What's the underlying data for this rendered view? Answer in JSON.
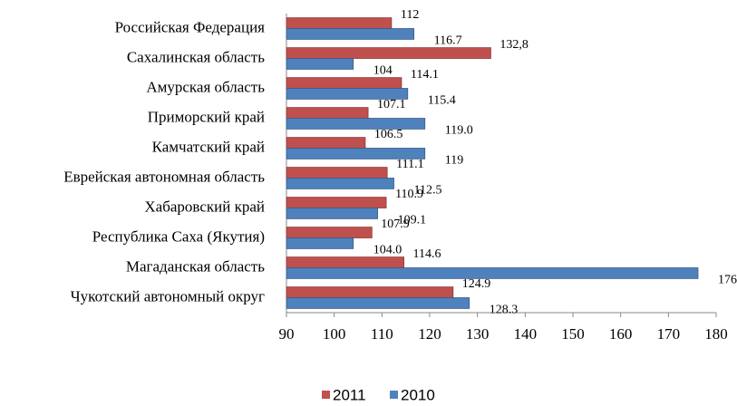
{
  "chart_data": {
    "type": "barh",
    "categories": [
      "Российская Федерация",
      "Сахалинская область",
      "Амурская область",
      "Приморский край",
      "Камчатский край",
      "Еврейская автономная область",
      "Хабаровский край",
      "Республика Саха (Якутия)",
      "Магаданская область",
      "Чукотский автономный округ"
    ],
    "series": [
      {
        "name": "2011",
        "color": "#c0504d",
        "values": [
          112,
          132.8,
          114.1,
          107.1,
          106.5,
          111.1,
          110.9,
          107.9,
          114.6,
          124.9
        ],
        "value_labels": [
          "112",
          "132,8",
          "114.1",
          "107.1",
          "106.5",
          "111.1",
          "110.9",
          "107.9",
          "114.6",
          "124.9"
        ]
      },
      {
        "name": "2010",
        "color": "#4f81bd",
        "values": [
          116.7,
          104,
          115.4,
          119.0,
          119,
          112.5,
          109.1,
          104.0,
          176.2,
          128.3
        ],
        "value_labels": [
          "116.7",
          "104",
          "115.4",
          "119.0",
          "119",
          "112.5",
          "109.1",
          "104.0",
          "176.2",
          "128.3"
        ]
      }
    ],
    "xlim": [
      90,
      180
    ],
    "xticks": [
      90,
      100,
      110,
      120,
      130,
      140,
      150,
      160,
      170,
      180
    ],
    "legend": "bottom"
  }
}
